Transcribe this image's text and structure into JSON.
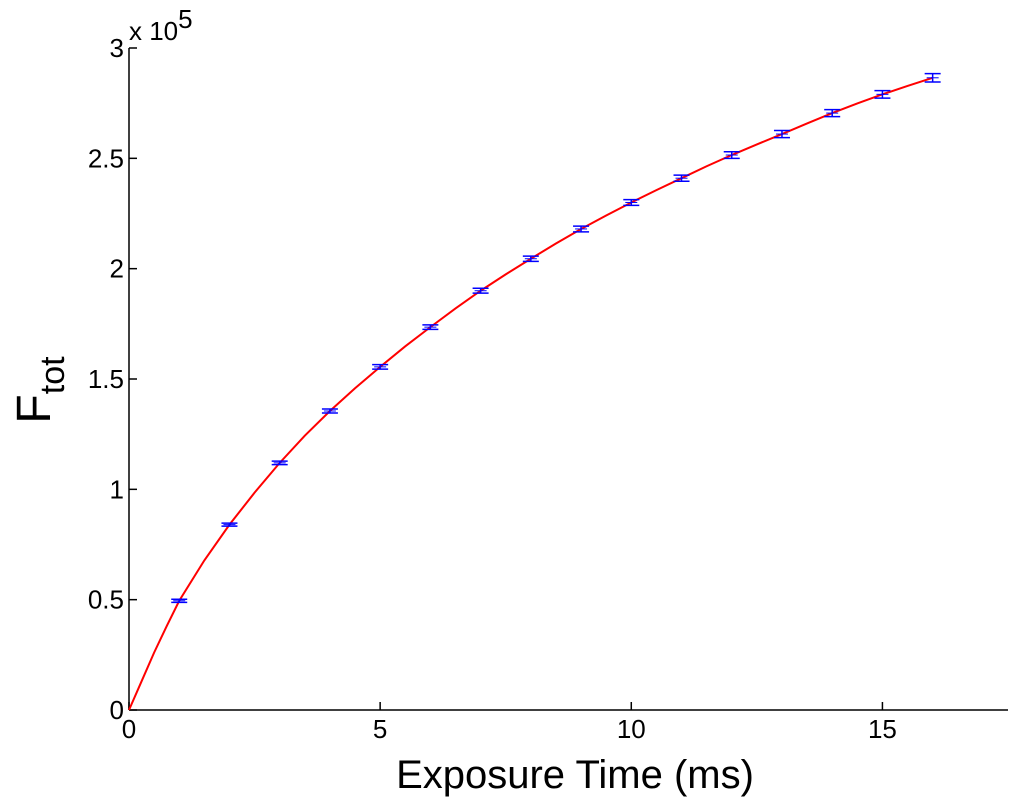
{
  "chart_data": {
    "type": "scatter",
    "xlabel": "Exposure Time (ms)",
    "ylabel": {
      "main": "F",
      "subscript": "tot"
    },
    "y_scale_note": {
      "base": "x 10",
      "exponent": "5"
    },
    "xlim": [
      0,
      17.5
    ],
    "ylim": [
      0,
      300000
    ],
    "xticks": [
      0,
      5,
      10,
      15
    ],
    "xtick_labels": [
      "0",
      "5",
      "10",
      "15"
    ],
    "yticks": [
      0,
      50000,
      100000,
      150000,
      200000,
      250000,
      300000
    ],
    "ytick_labels": [
      "0",
      "0.5",
      "1",
      "1.5",
      "2",
      "2.5",
      "3"
    ],
    "grid": false,
    "series": [
      {
        "type": "errorbar",
        "color": "#0000ff",
        "x": [
          1,
          2,
          3,
          4,
          5,
          6,
          7,
          8,
          9,
          10,
          11,
          12,
          13,
          14,
          15,
          16
        ],
        "y": [
          49500,
          84000,
          112000,
          135500,
          155500,
          173500,
          190000,
          204500,
          218000,
          230000,
          241000,
          251500,
          261000,
          270500,
          279000,
          286500
        ],
        "err": [
          700,
          700,
          800,
          900,
          1000,
          1000,
          1100,
          1200,
          1300,
          1300,
          1400,
          1500,
          1600,
          1600,
          1700,
          1900
        ]
      },
      {
        "type": "line",
        "color": "#ff0000",
        "x": [
          0,
          0.25,
          0.5,
          0.75,
          1,
          1.5,
          2,
          2.5,
          3,
          3.5,
          4,
          4.5,
          5,
          5.5,
          6,
          6.5,
          7,
          7.5,
          8,
          8.5,
          9,
          9.5,
          10,
          10.5,
          11,
          11.5,
          12,
          12.5,
          13,
          13.5,
          14,
          14.5,
          15,
          15.5,
          16
        ],
        "y": [
          0,
          13000,
          26000,
          38000,
          49500,
          67800,
          84000,
          98500,
          112000,
          124300,
          135500,
          145800,
          155500,
          164800,
          173500,
          182000,
          190000,
          197400,
          204500,
          211400,
          218000,
          224100,
          230000,
          235600,
          241000,
          246400,
          251500,
          256300,
          261000,
          265800,
          270500,
          274900,
          279000,
          282800,
          286500
        ]
      }
    ]
  }
}
